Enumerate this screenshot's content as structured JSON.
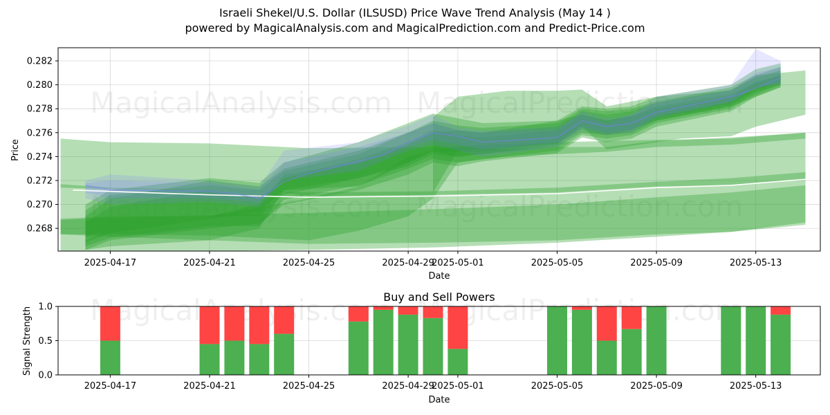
{
  "title_line1": "Israeli Shekel/U.S. Dollar (ILSUSD) Price Wave Trend Analysis (May 14 )",
  "title_line2": "powered by MagicalAnalysis.com and MagicalPrediction.com and Predict-Price.com",
  "watermarks": [
    "MagicalAnalysis.com",
    "MagicalPrediction.com"
  ],
  "colors": {
    "green_band": "#2ca02c",
    "blue_band": "#7b7bff",
    "buy": "#4caf50",
    "sell": "#ff4444",
    "white_line": "#ffffff"
  },
  "chart_data": [
    {
      "type": "area",
      "title": "",
      "xlabel": "Date",
      "ylabel": "Price",
      "x_domain_days": [
        -1.1,
        29.6
      ],
      "x_origin_date": "2025-04-16",
      "ylim": [
        0.2661,
        0.2831
      ],
      "grid": true,
      "x_ticks": [
        {
          "day": 1,
          "label": "2025-04-17"
        },
        {
          "day": 5,
          "label": "2025-04-21"
        },
        {
          "day": 9,
          "label": "2025-04-25"
        },
        {
          "day": 13,
          "label": "2025-04-29"
        },
        {
          "day": 15,
          "label": "2025-05-01"
        },
        {
          "day": 19,
          "label": "2025-05-05"
        },
        {
          "day": 23,
          "label": "2025-05-09"
        },
        {
          "day": 27,
          "label": "2025-05-13"
        }
      ],
      "y_ticks": [
        0.268,
        0.27,
        0.272,
        0.274,
        0.276,
        0.278,
        0.28,
        0.282
      ],
      "actual_price": {
        "days": [
          0,
          1,
          5,
          6,
          7,
          8,
          9,
          12,
          13,
          14,
          15,
          16,
          19,
          20,
          21,
          22,
          23,
          26,
          27,
          28
        ],
        "values": [
          0.2716,
          0.2712,
          0.2711,
          0.2709,
          0.2705,
          0.2719,
          0.2726,
          0.2741,
          0.2752,
          0.276,
          0.2757,
          0.2752,
          0.2756,
          0.277,
          0.2765,
          0.2768,
          0.2777,
          0.279,
          0.2797,
          0.2806
        ]
      },
      "white_line": {
        "days": [
          -0.5,
          5,
          9,
          14,
          19,
          23,
          26,
          29
        ],
        "values": [
          0.2712,
          0.2708,
          0.2706,
          0.2707,
          0.2709,
          0.2714,
          0.2716,
          0.2721
        ]
      },
      "wave_bands": [
        {
          "days": [
            -1,
            1,
            5,
            8,
            9,
            14,
            19,
            23,
            26,
            29
          ],
          "upper": [
            0.2755,
            0.2752,
            0.2751,
            0.2748,
            0.2747,
            0.2748,
            0.2752,
            0.2754,
            0.2755,
            0.276
          ],
          "lower": [
            0.2714,
            0.2713,
            0.2712,
            0.271,
            0.2707,
            0.2708,
            0.271,
            0.2715,
            0.2716,
            0.2721
          ]
        },
        {
          "days": [
            -1,
            1,
            5,
            9,
            14,
            19,
            23,
            26,
            29
          ],
          "upper": [
            0.2717,
            0.2714,
            0.2712,
            0.271,
            0.2711,
            0.2714,
            0.2719,
            0.2722,
            0.2727
          ],
          "lower": [
            0.266,
            0.266,
            0.2661,
            0.2662,
            0.2664,
            0.2668,
            0.2673,
            0.2677,
            0.2685
          ]
        },
        {
          "days": [
            -1,
            1,
            5,
            9,
            14,
            19,
            23,
            26,
            29
          ],
          "upper": [
            0.2687,
            0.2689,
            0.2691,
            0.2693,
            0.2696,
            0.27,
            0.2706,
            0.271,
            0.2716
          ],
          "lower": [
            0.2675,
            0.2673,
            0.267,
            0.2667,
            0.2668,
            0.267,
            0.2675,
            0.2677,
            0.2683
          ]
        },
        {
          "days": [
            14,
            15,
            17,
            19,
            20,
            21,
            22,
            23,
            24,
            26,
            27,
            29
          ],
          "upper": [
            0.2773,
            0.279,
            0.2795,
            0.2795,
            0.2796,
            0.2782,
            0.2786,
            0.279,
            0.2792,
            0.2795,
            0.2808,
            0.2812
          ],
          "lower": [
            0.271,
            0.2745,
            0.2748,
            0.2751,
            0.2765,
            0.2746,
            0.2749,
            0.2752,
            0.2755,
            0.2757,
            0.2765,
            0.2775
          ]
        },
        {
          "days": [
            0,
            1,
            5,
            7,
            8,
            11,
            13,
            14,
            15,
            16,
            19,
            20,
            21,
            22,
            23,
            26,
            27,
            28
          ],
          "upper": [
            0.269,
            0.2705,
            0.272,
            0.2715,
            0.273,
            0.2745,
            0.276,
            0.2768,
            0.2762,
            0.276,
            0.2765,
            0.2778,
            0.2775,
            0.2778,
            0.2785,
            0.2796,
            0.2806,
            0.2812
          ],
          "lower": [
            0.2662,
            0.267,
            0.268,
            0.2684,
            0.27,
            0.2712,
            0.2725,
            0.2735,
            0.2732,
            0.2736,
            0.2743,
            0.2756,
            0.2752,
            0.2755,
            0.2765,
            0.2778,
            0.279,
            0.2798
          ]
        },
        {
          "days": [
            0,
            1,
            5,
            7,
            8,
            11,
            13,
            14,
            15,
            16,
            19,
            20,
            21,
            22,
            23,
            26,
            27,
            28
          ],
          "upper": [
            0.27,
            0.2712,
            0.2722,
            0.2718,
            0.2735,
            0.2752,
            0.2768,
            0.2776,
            0.2772,
            0.2768,
            0.277,
            0.2782,
            0.278,
            0.2782,
            0.279,
            0.28,
            0.2813,
            0.2818
          ],
          "lower": [
            0.2672,
            0.268,
            0.269,
            0.269,
            0.2708,
            0.2722,
            0.2735,
            0.2744,
            0.274,
            0.2742,
            0.2748,
            0.276,
            0.2758,
            0.276,
            0.277,
            0.2782,
            0.2794,
            0.28
          ]
        },
        {
          "days": [
            0,
            1,
            5,
            7,
            8,
            11,
            13,
            14,
            15,
            16,
            19,
            20,
            21,
            22,
            23,
            26,
            27,
            28
          ],
          "upper": [
            0.2685,
            0.2698,
            0.2712,
            0.2705,
            0.2722,
            0.2738,
            0.2752,
            0.2762,
            0.2758,
            0.2756,
            0.2762,
            0.2775,
            0.277,
            0.2774,
            0.2782,
            0.2792,
            0.2802,
            0.2808
          ],
          "lower": [
            0.2668,
            0.2676,
            0.2688,
            0.2694,
            0.2712,
            0.2722,
            0.2732,
            0.2742,
            0.274,
            0.2742,
            0.275,
            0.2763,
            0.2758,
            0.2762,
            0.2772,
            0.2784,
            0.2796,
            0.2802
          ]
        },
        {
          "days": [
            0,
            1,
            5,
            7,
            8,
            11,
            13,
            14,
            15,
            16,
            19,
            20,
            21,
            22,
            23,
            26,
            27,
            28
          ],
          "upper": [
            0.2695,
            0.2708,
            0.2716,
            0.2712,
            0.2728,
            0.2742,
            0.276,
            0.277,
            0.2766,
            0.2764,
            0.2768,
            0.278,
            0.2778,
            0.278,
            0.2786,
            0.2798,
            0.2808,
            0.2815
          ],
          "lower": [
            0.2665,
            0.2672,
            0.2682,
            0.2682,
            0.2704,
            0.2716,
            0.273,
            0.2738,
            0.2735,
            0.2738,
            0.2745,
            0.2758,
            0.2755,
            0.2758,
            0.2768,
            0.278,
            0.2792,
            0.28
          ]
        },
        {
          "days": [
            0,
            1,
            5,
            7,
            8,
            11,
            13,
            14,
            15,
            16,
            19,
            20,
            21,
            22,
            23,
            26,
            27,
            28
          ],
          "upper": [
            0.267,
            0.268,
            0.269,
            0.27,
            0.2725,
            0.2735,
            0.275,
            0.276,
            0.2762,
            0.276,
            0.277,
            0.2775,
            0.277,
            0.2774,
            0.278,
            0.279,
            0.2802,
            0.2808
          ],
          "lower": [
            0.2662,
            0.2665,
            0.267,
            0.268,
            0.2712,
            0.2715,
            0.2735,
            0.2745,
            0.2744,
            0.2744,
            0.2752,
            0.2765,
            0.276,
            0.2763,
            0.277,
            0.2782,
            0.279,
            0.2798
          ]
        },
        {
          "days": [
            -1,
            1,
            5,
            9,
            11,
            13,
            14,
            15,
            17,
            19,
            21,
            23,
            26,
            29
          ],
          "upper": [
            0.2688,
            0.269,
            0.269,
            0.2705,
            0.2715,
            0.274,
            0.2745,
            0.2748,
            0.2746,
            0.2748,
            0.2748,
            0.2753,
            0.2756,
            0.276
          ],
          "lower": [
            0.2675,
            0.2675,
            0.2674,
            0.267,
            0.2678,
            0.269,
            0.2705,
            0.2735,
            0.274,
            0.2742,
            0.2744,
            0.2748,
            0.275,
            0.2755
          ]
        }
      ],
      "blue_bands": [
        {
          "days": [
            0,
            1,
            5,
            7,
            8,
            11,
            13,
            14,
            15,
            16,
            19,
            20,
            21,
            22,
            23,
            26,
            27,
            28
          ],
          "upper": [
            0.272,
            0.2725,
            0.272,
            0.2715,
            0.2745,
            0.2752,
            0.2766,
            0.2775,
            0.2765,
            0.2762,
            0.2765,
            0.2775,
            0.2768,
            0.2775,
            0.279,
            0.28,
            0.283,
            0.282
          ],
          "lower": [
            0.2705,
            0.27,
            0.2702,
            0.2698,
            0.272,
            0.2728,
            0.2745,
            0.275,
            0.2745,
            0.274,
            0.2748,
            0.2762,
            0.2758,
            0.276,
            0.2772,
            0.2785,
            0.2798,
            0.28
          ]
        },
        {
          "days": [
            0,
            1,
            5,
            7,
            8,
            11,
            13,
            14,
            15,
            16,
            19,
            20,
            21,
            22,
            23,
            26,
            27,
            28
          ],
          "upper": [
            0.2718,
            0.272,
            0.2718,
            0.2712,
            0.2735,
            0.2748,
            0.276,
            0.2768,
            0.2762,
            0.276,
            0.2762,
            0.2778,
            0.2772,
            0.2775,
            0.2785,
            0.2795,
            0.281,
            0.2815
          ],
          "lower": [
            0.271,
            0.2705,
            0.2705,
            0.2702,
            0.2722,
            0.2734,
            0.2748,
            0.2754,
            0.275,
            0.2746,
            0.2752,
            0.2765,
            0.276,
            0.2762,
            0.2774,
            0.2786,
            0.2798,
            0.2802
          ]
        }
      ]
    },
    {
      "type": "bar",
      "title": "Buy and Sell Powers",
      "xlabel": "Date",
      "ylabel": "Signal Strength",
      "ylim": [
        0.0,
        1.0
      ],
      "y_ticks": [
        0.0,
        0.5,
        1.0
      ],
      "grid": true,
      "series": [
        {
          "name": "Buy",
          "days": [
            1,
            5,
            6,
            7,
            8,
            11,
            12,
            13,
            14,
            15,
            19,
            20,
            21,
            22,
            23,
            26,
            27,
            28
          ],
          "values": [
            0.5,
            0.45,
            0.5,
            0.45,
            0.6,
            0.78,
            0.95,
            0.88,
            0.83,
            0.38,
            1.0,
            0.95,
            0.5,
            0.67,
            1.0,
            1.0,
            1.0,
            0.88
          ]
        },
        {
          "name": "Sell",
          "days": [
            1,
            5,
            6,
            7,
            8,
            11,
            12,
            13,
            14,
            15,
            19,
            20,
            21,
            22,
            23,
            26,
            27,
            28
          ],
          "values": [
            0.5,
            0.55,
            0.5,
            0.55,
            0.4,
            0.22,
            0.05,
            0.12,
            0.17,
            0.62,
            0.0,
            0.05,
            0.5,
            0.33,
            0.0,
            0.0,
            0.0,
            0.12
          ]
        }
      ]
    }
  ]
}
